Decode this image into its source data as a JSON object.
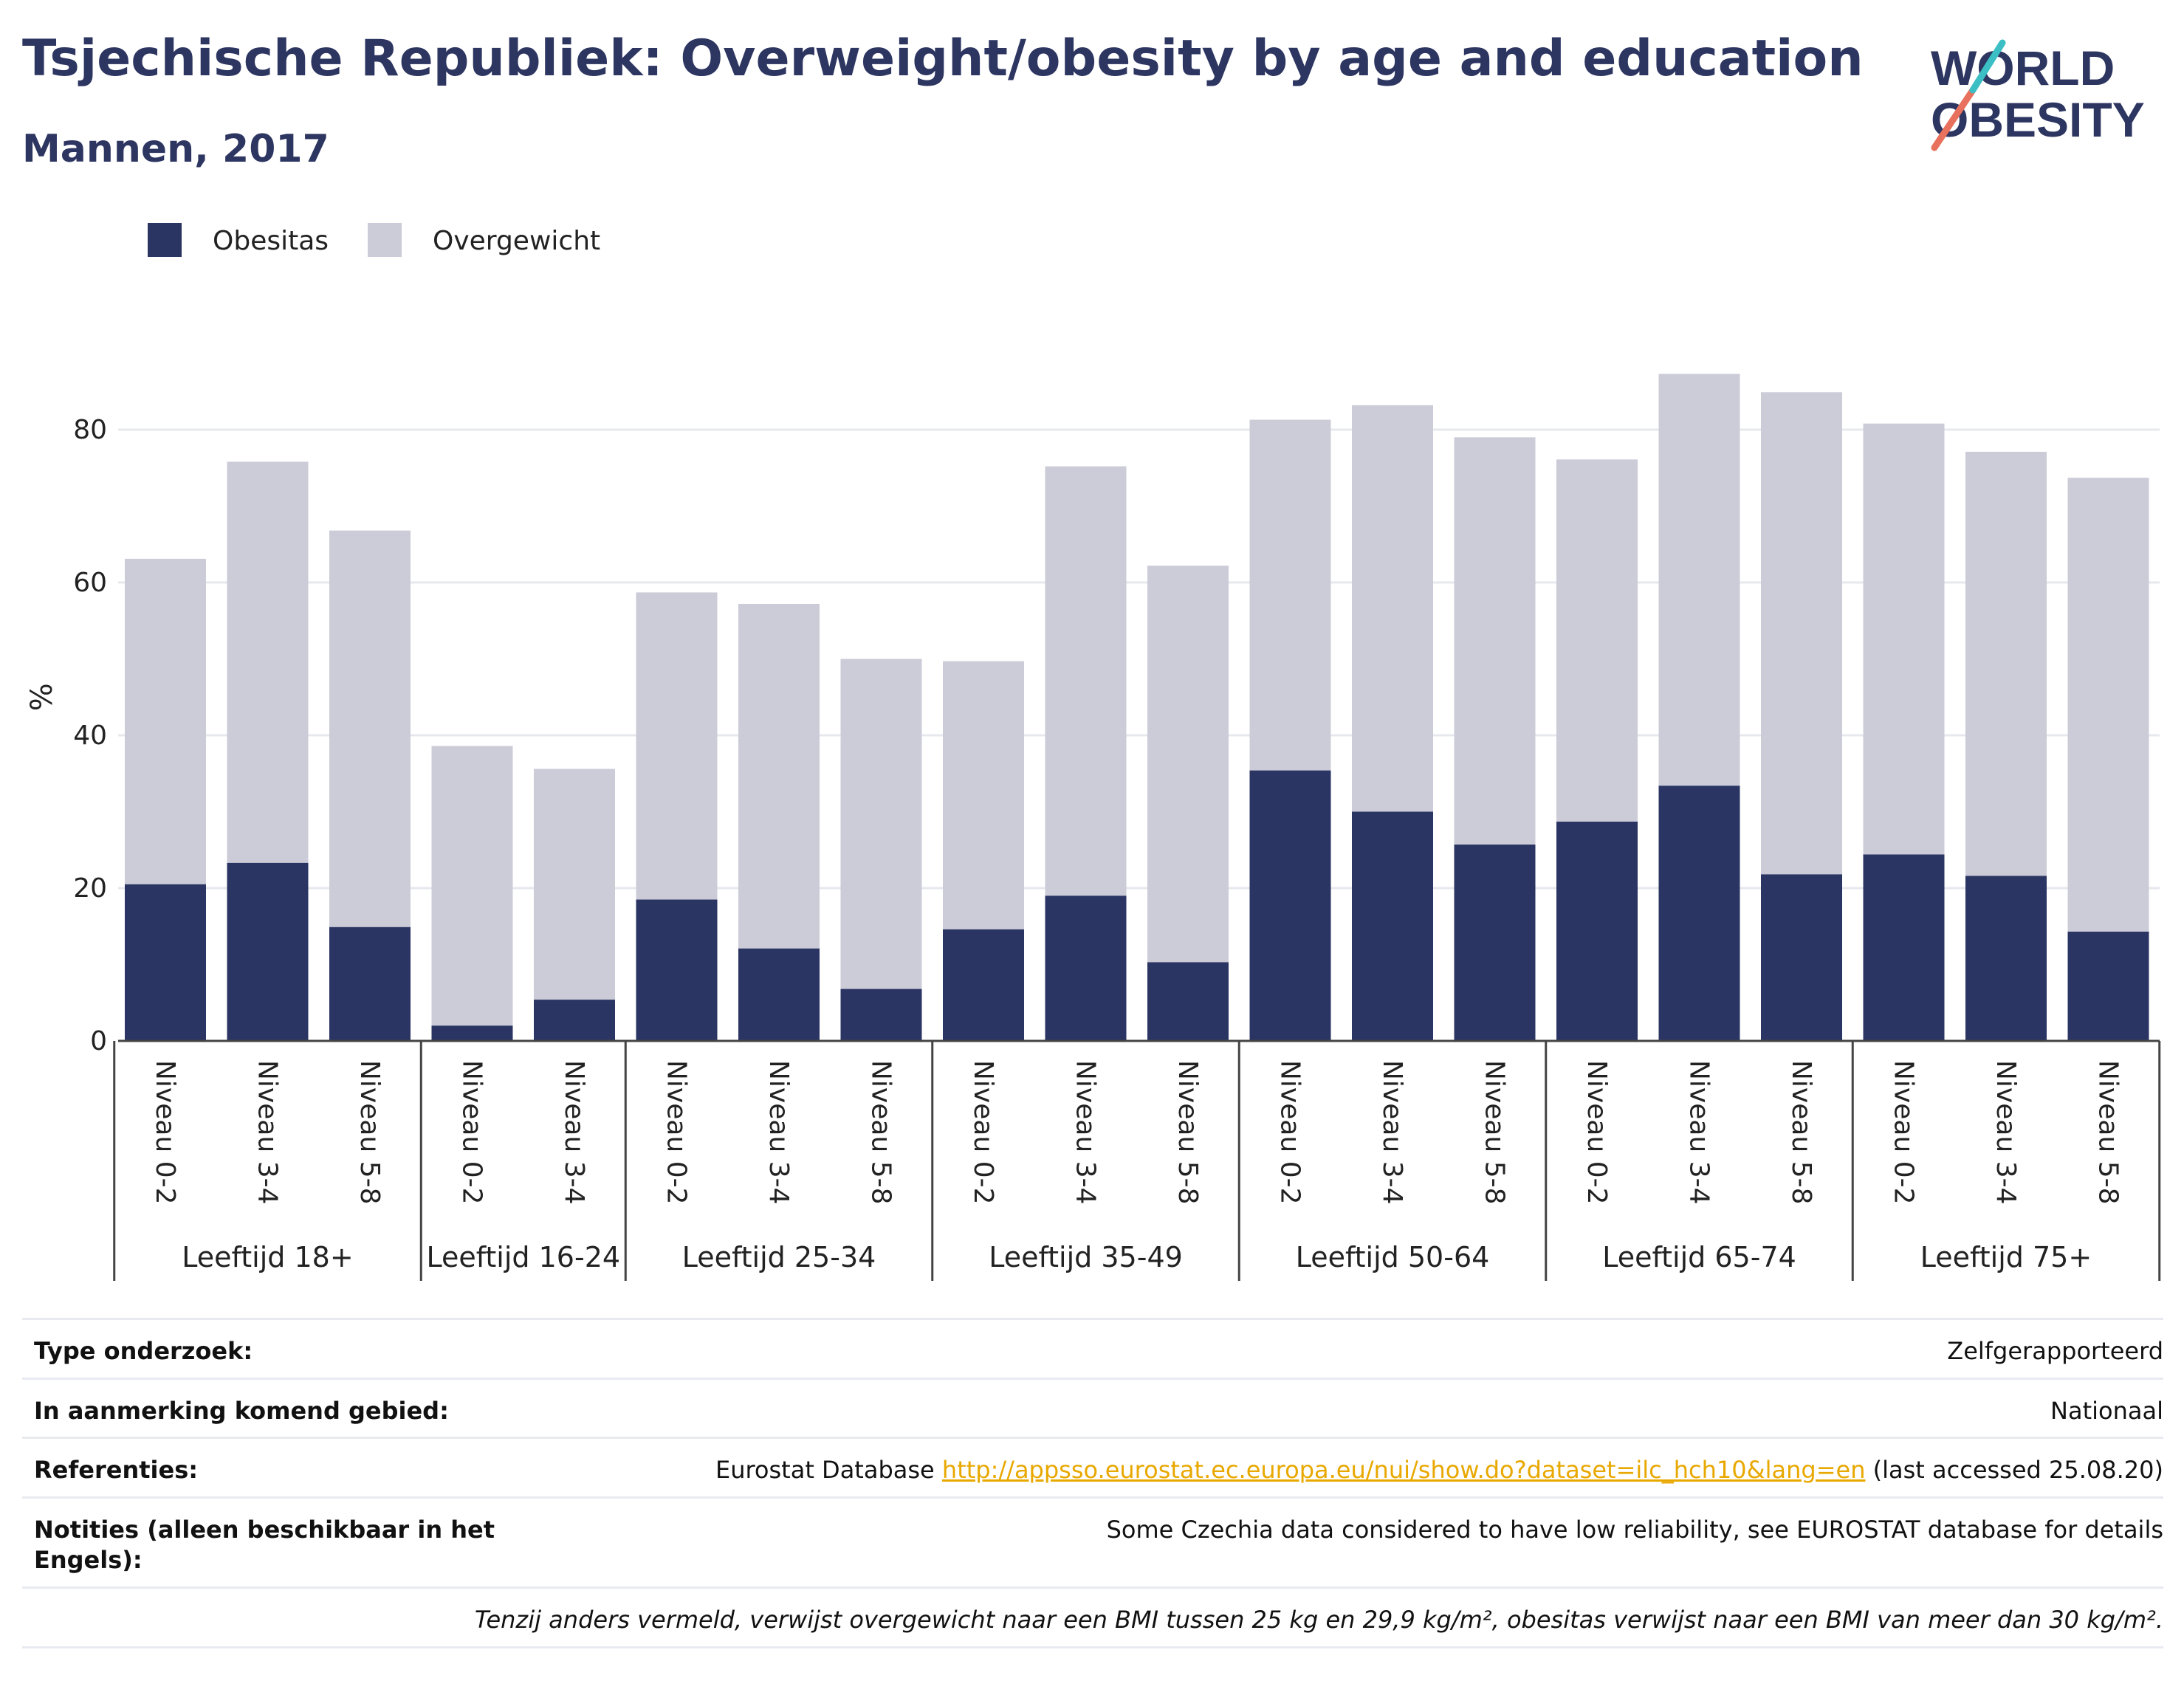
{
  "title": "Tsjechische Republiek: Overweight/obesity by age and education",
  "subtitle": "Mannen, 2017",
  "logo": {
    "line1": "WORLD",
    "line2": "OBESITY",
    "colors": [
      "#2d3561",
      "#e8715e",
      "#3bbfc4"
    ]
  },
  "colors": {
    "obesity": "#2b3563",
    "overweight": "#cbccd8",
    "grid": "#e6e8ee"
  },
  "chart_data": {
    "type": "bar",
    "stacked": true,
    "ylabel": "%",
    "ylim": [
      0,
      90
    ],
    "yticks": [
      "0",
      "20",
      "40",
      "60",
      "80"
    ],
    "grid": true,
    "legend_position": "top-left",
    "series": [
      {
        "name": "Obesitas",
        "color": "#2b3563"
      },
      {
        "name": "Overgewicht",
        "color": "#cbccd8"
      }
    ],
    "groups": [
      {
        "label": "Leeftijd 18+",
        "bars": [
          {
            "label": "Niveau 0-2",
            "obesity": 20.5,
            "total": 63.1
          },
          {
            "label": "Niveau 3-4",
            "obesity": 23.3,
            "total": 75.8
          },
          {
            "label": "Niveau 5-8",
            "obesity": 14.9,
            "total": 66.8
          }
        ]
      },
      {
        "label": "Leeftijd 16-24",
        "bars": [
          {
            "label": "Niveau 0-2",
            "obesity": 2.0,
            "total": 38.6
          },
          {
            "label": "Niveau 3-4",
            "obesity": 5.4,
            "total": 35.6
          }
        ]
      },
      {
        "label": "Leeftijd 25-34",
        "bars": [
          {
            "label": "Niveau 0-2",
            "obesity": 18.5,
            "total": 58.7
          },
          {
            "label": "Niveau 3-4",
            "obesity": 12.1,
            "total": 57.2
          },
          {
            "label": "Niveau 5-8",
            "obesity": 6.8,
            "total": 50.0
          }
        ]
      },
      {
        "label": "Leeftijd 35-49",
        "bars": [
          {
            "label": "Niveau 0-2",
            "obesity": 14.6,
            "total": 49.7
          },
          {
            "label": "Niveau 3-4",
            "obesity": 19.0,
            "total": 75.2
          },
          {
            "label": "Niveau 5-8",
            "obesity": 10.3,
            "total": 62.2
          }
        ]
      },
      {
        "label": "Leeftijd 50-64",
        "bars": [
          {
            "label": "Niveau 0-2",
            "obesity": 35.4,
            "total": 81.3
          },
          {
            "label": "Niveau 3-4",
            "obesity": 30.0,
            "total": 83.2
          },
          {
            "label": "Niveau 5-8",
            "obesity": 25.7,
            "total": 79.0
          }
        ]
      },
      {
        "label": "Leeftijd 65-74",
        "bars": [
          {
            "label": "Niveau 0-2",
            "obesity": 28.7,
            "total": 76.1
          },
          {
            "label": "Niveau 3-4",
            "obesity": 33.4,
            "total": 87.3
          },
          {
            "label": "Niveau 5-8",
            "obesity": 21.8,
            "total": 84.9
          }
        ]
      },
      {
        "label": "Leeftijd 75+",
        "bars": [
          {
            "label": "Niveau 0-2",
            "obesity": 24.4,
            "total": 80.8
          },
          {
            "label": "Niveau 3-4",
            "obesity": 21.6,
            "total": 77.1
          },
          {
            "label": "Niveau 5-8",
            "obesity": 14.3,
            "total": 73.7
          }
        ]
      }
    ]
  },
  "info": {
    "survey_type": {
      "key": "Type onderzoek:",
      "value": "Zelfgerapporteerd"
    },
    "area": {
      "key": "In aanmerking komend gebied:",
      "value": "Nationaal"
    },
    "references": {
      "key": "Referenties:",
      "prefix": "Eurostat Database",
      "link": "http://appsso.eurostat.ec.europa.eu/nui/show.do?dataset=ilc_hch10&lang=en",
      "suffix": "(last accessed 25.08.20)"
    },
    "notes": {
      "key": "Notities (alleen beschikbaar in het Engels):",
      "value": "Some Czechia data considered to have low reliability, see EUROSTAT database for details"
    },
    "footnote": "Tenzij anders vermeld, verwijst overgewicht naar een BMI tussen 25 kg en 29,9 kg/m², obesitas verwijst naar een BMI van meer dan 30 kg/m²."
  }
}
